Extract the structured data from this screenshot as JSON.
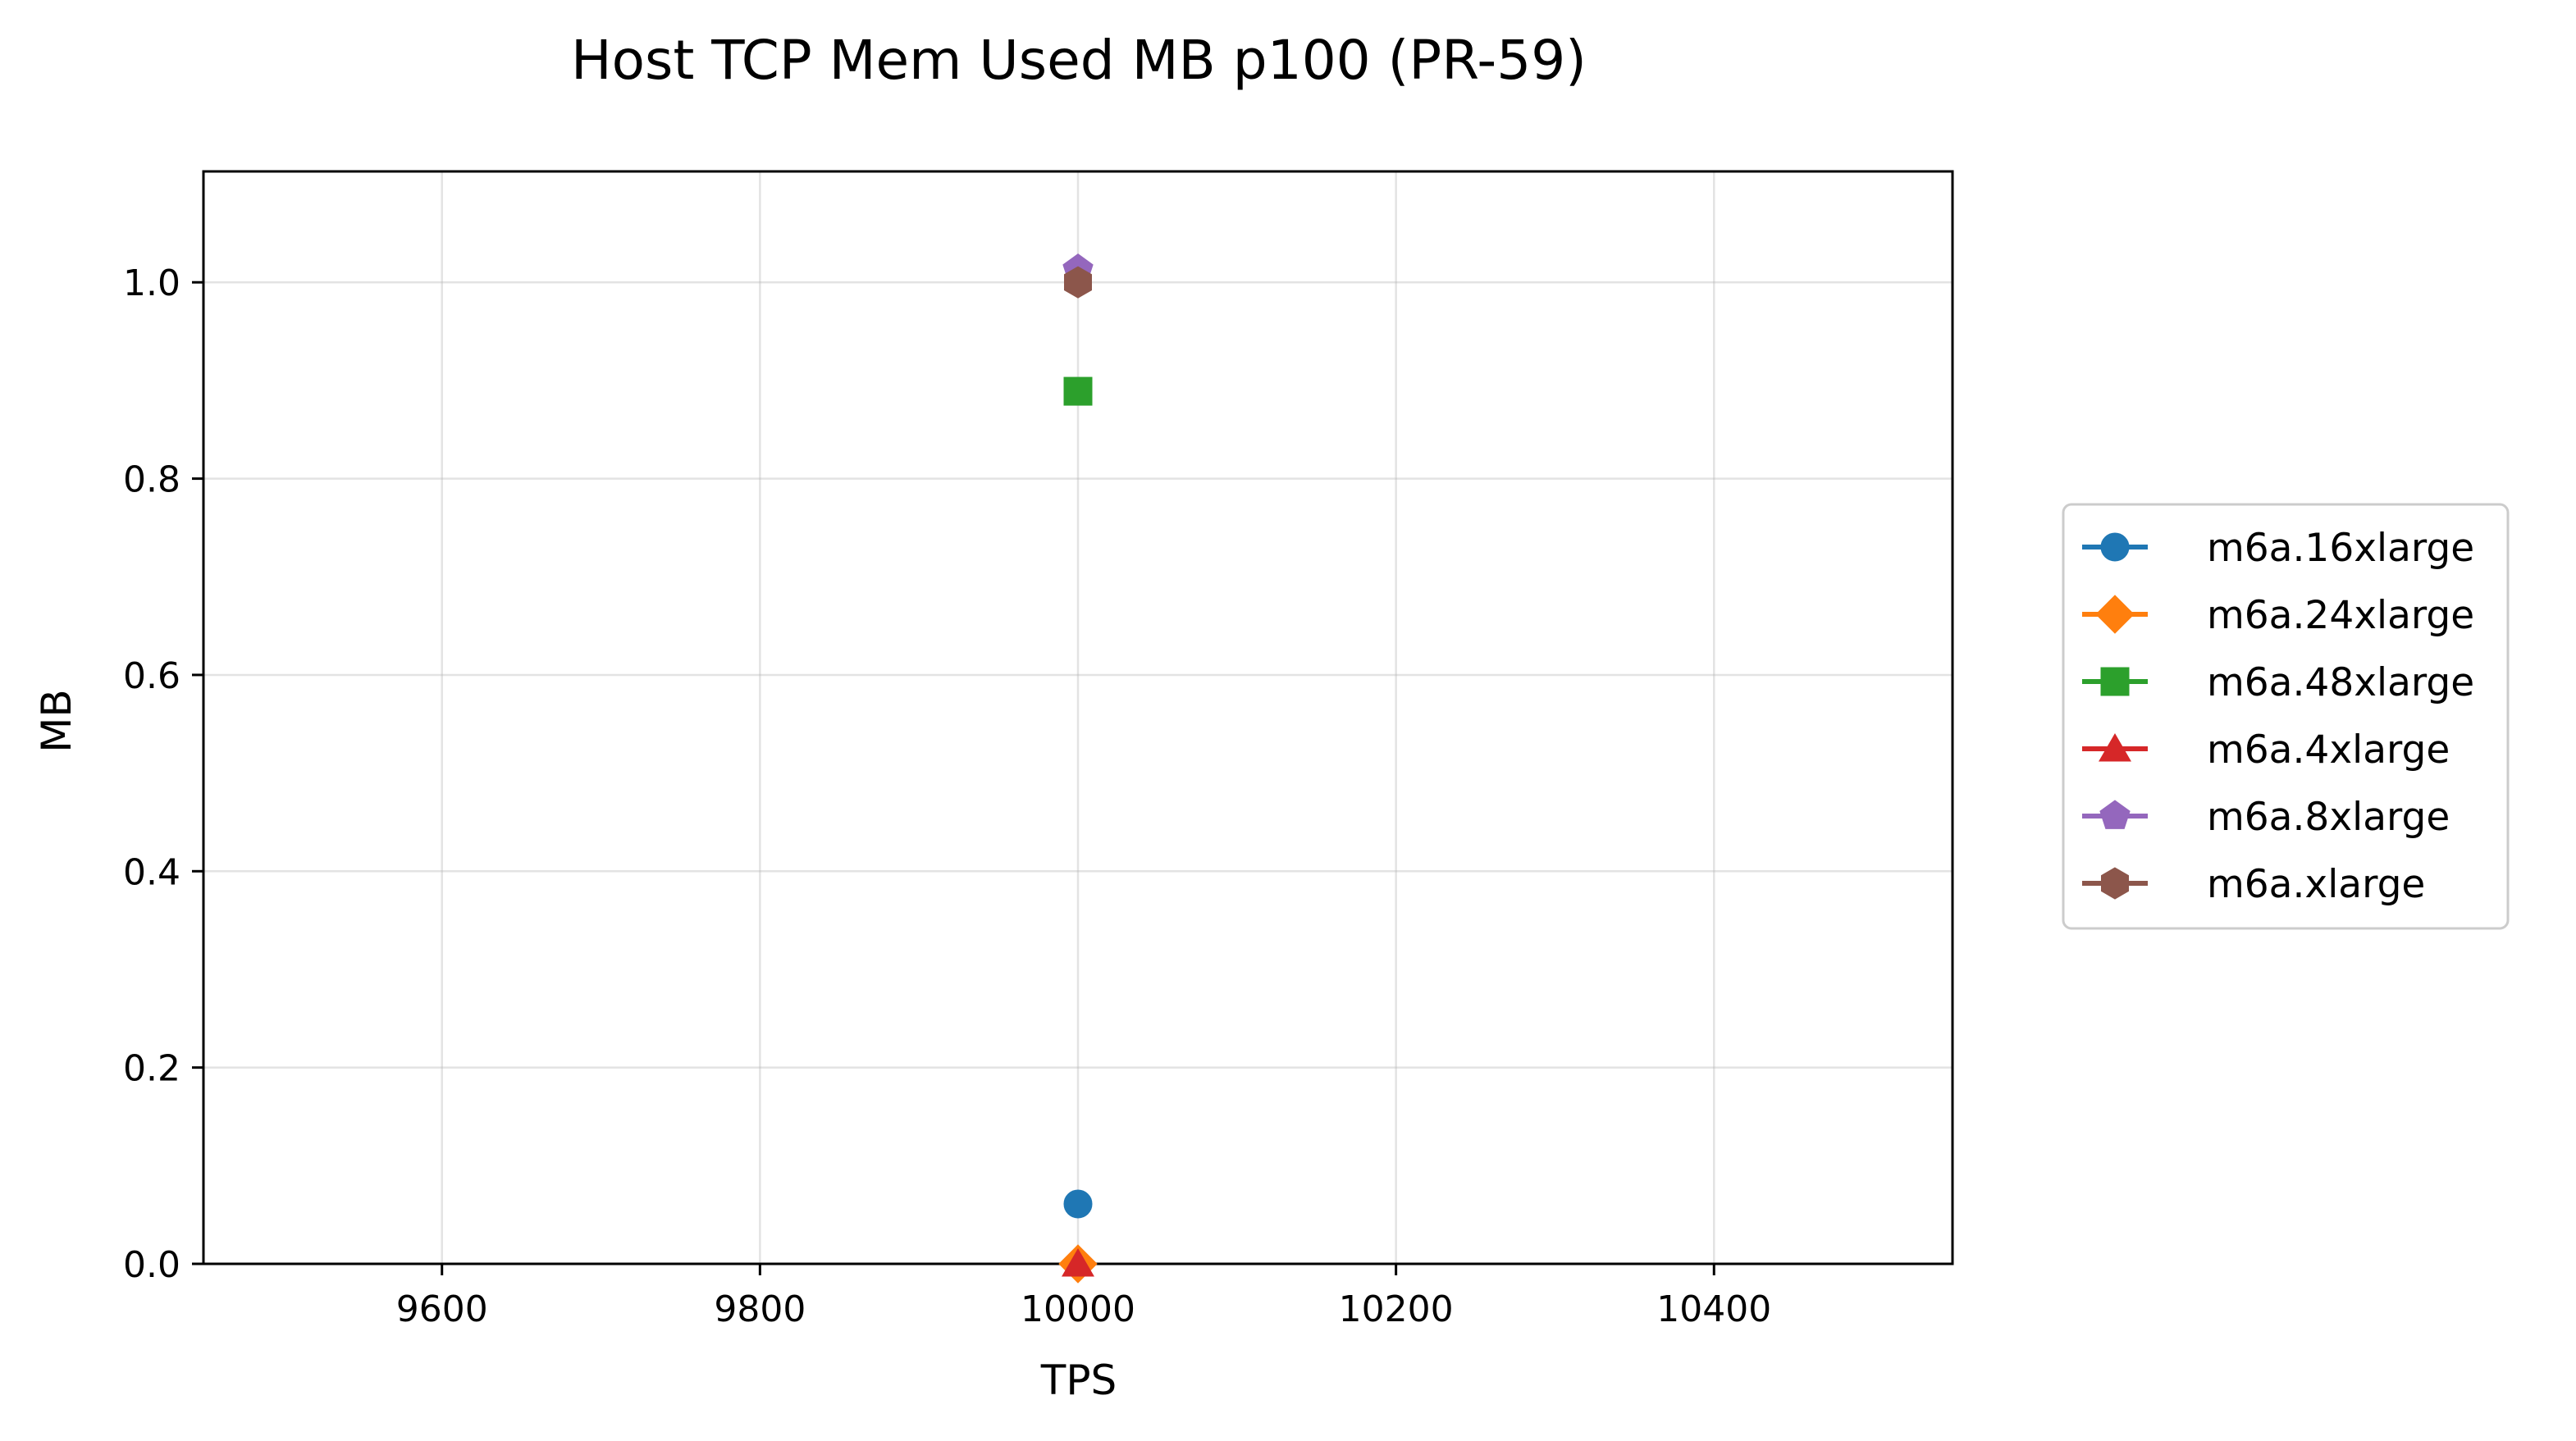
{
  "chart_data": {
    "type": "line",
    "title": "Host TCP Mem Used MB p100 (PR-59)",
    "xlabel": "TPS",
    "ylabel": "MB",
    "xlim": [
      9450,
      10550
    ],
    "ylim": [
      0,
      1.113
    ],
    "xticks": [
      9600,
      9800,
      10000,
      10200,
      10400
    ],
    "yticks": [
      0.0,
      0.2,
      0.4,
      0.6,
      0.8,
      1.0
    ],
    "xtick_labels": [
      "9600",
      "9800",
      "10000",
      "10200",
      "10400"
    ],
    "ytick_labels": [
      "0.0",
      "0.2",
      "0.4",
      "0.6",
      "0.8",
      "1.0"
    ],
    "grid": true,
    "legend_position": "right",
    "series": [
      {
        "name": "m6a.16xlarge",
        "color": "#1f77b4",
        "marker": "circle",
        "x": [
          10000
        ],
        "y": [
          0.061
        ]
      },
      {
        "name": "m6a.24xlarge",
        "color": "#ff7f0e",
        "marker": "diamond",
        "x": [
          10000
        ],
        "y": [
          0.0
        ]
      },
      {
        "name": "m6a.48xlarge",
        "color": "#2ca02c",
        "marker": "square",
        "x": [
          10000
        ],
        "y": [
          0.889
        ]
      },
      {
        "name": "m6a.4xlarge",
        "color": "#d62728",
        "marker": "triangle",
        "x": [
          10000
        ],
        "y": [
          0.0
        ]
      },
      {
        "name": "m6a.8xlarge",
        "color": "#9467bd",
        "marker": "pentagon",
        "x": [
          10000
        ],
        "y": [
          1.013
        ]
      },
      {
        "name": "m6a.xlarge",
        "color": "#8c564b",
        "marker": "hexagon",
        "x": [
          10000
        ],
        "y": [
          1.0
        ]
      }
    ]
  }
}
